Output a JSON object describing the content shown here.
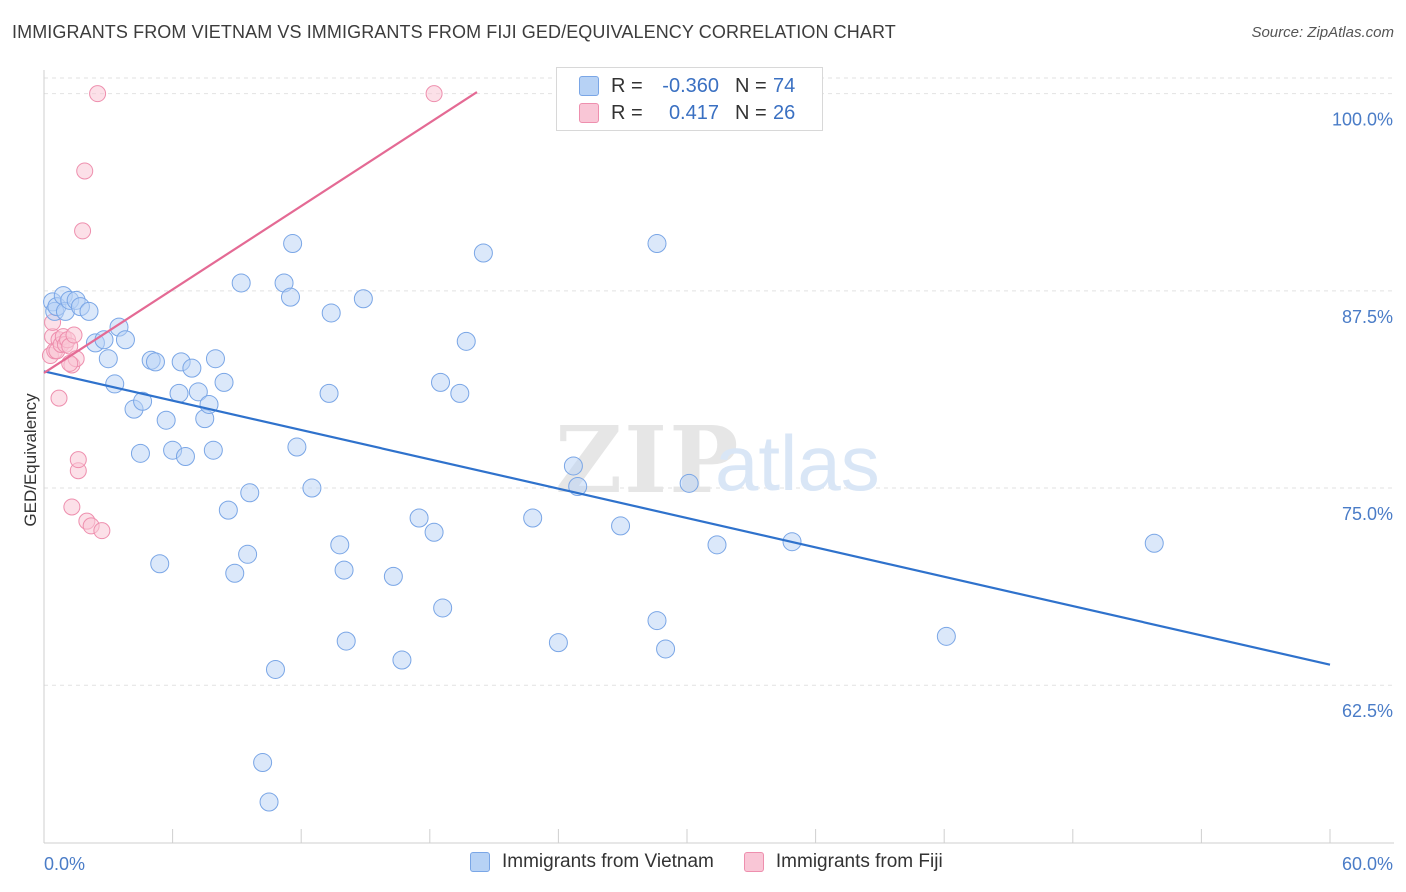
{
  "title": "IMMIGRANTS FROM VIETNAM VS IMMIGRANTS FROM FIJI GED/EQUIVALENCY CORRELATION CHART",
  "source": "Source: ZipAtlas.com",
  "watermark": {
    "zip": "ZIP",
    "atlas": "atlas"
  },
  "legend": {
    "rows": [
      {
        "r_label": "R =",
        "r_value": "-0.360",
        "n_label": "N =",
        "n_value": "74"
      },
      {
        "r_label": "R =",
        "r_value": "0.417",
        "n_label": "N =",
        "n_value": "26"
      }
    ]
  },
  "colors": {
    "vietnam_fill": "#b7d2f5",
    "vietnam_stroke": "#7aa6e6",
    "vietnam_line": "#2f72cc",
    "fiji_fill": "#f9c6d6",
    "fiji_stroke": "#ee8fae",
    "fiji_line": "#e46a94",
    "tick_label": "#4a7cc7",
    "grid": "#e2e2e2"
  },
  "chart_data": {
    "type": "scatter",
    "xlabel": "",
    "ylabel": "GED/Equivalency",
    "xlim": [
      0,
      60
    ],
    "ylim": [
      52.5,
      101.5
    ],
    "x_tick_labels": [
      "0.0%",
      "60.0%"
    ],
    "y_ticks": [
      62.5,
      75.0,
      87.5,
      100.0
    ],
    "y_tick_labels": [
      "62.5%",
      "75.0%",
      "87.5%",
      "100.0%"
    ],
    "grid": true,
    "legend_position": "bottom",
    "series": [
      {
        "name": "Immigrants from Vietnam",
        "color": "#b7d2f5",
        "trend": {
          "x": [
            0,
            60
          ],
          "y": [
            82.4,
            63.8
          ]
        },
        "points": [
          [
            0.4,
            86.8
          ],
          [
            0.5,
            86.2
          ],
          [
            0.6,
            86.5
          ],
          [
            0.9,
            87.2
          ],
          [
            1.0,
            86.2
          ],
          [
            1.2,
            86.9
          ],
          [
            1.5,
            86.9
          ],
          [
            1.7,
            86.5
          ],
          [
            2.1,
            86.2
          ],
          [
            2.4,
            84.2
          ],
          [
            2.8,
            84.4
          ],
          [
            3.0,
            83.2
          ],
          [
            3.3,
            81.6
          ],
          [
            3.5,
            85.2
          ],
          [
            3.8,
            84.4
          ],
          [
            4.2,
            80.0
          ],
          [
            4.6,
            80.5
          ],
          [
            4.5,
            77.2
          ],
          [
            5.0,
            83.1
          ],
          [
            5.2,
            83.0
          ],
          [
            5.7,
            79.3
          ],
          [
            5.4,
            70.2
          ],
          [
            6.0,
            77.4
          ],
          [
            6.3,
            81.0
          ],
          [
            6.4,
            83.0
          ],
          [
            6.6,
            77.0
          ],
          [
            6.9,
            82.6
          ],
          [
            7.2,
            81.1
          ],
          [
            7.5,
            79.4
          ],
          [
            7.7,
            80.3
          ],
          [
            7.9,
            77.4
          ],
          [
            8.0,
            83.2
          ],
          [
            8.4,
            81.7
          ],
          [
            8.6,
            73.6
          ],
          [
            8.9,
            69.6
          ],
          [
            9.2,
            88.0
          ],
          [
            9.5,
            70.8
          ],
          [
            9.6,
            74.7
          ],
          [
            10.2,
            57.6
          ],
          [
            10.5,
            55.1
          ],
          [
            10.8,
            63.5
          ],
          [
            11.2,
            88.0
          ],
          [
            11.5,
            87.1
          ],
          [
            11.6,
            90.5
          ],
          [
            11.8,
            77.6
          ],
          [
            12.5,
            75.0
          ],
          [
            13.3,
            81.0
          ],
          [
            13.4,
            86.1
          ],
          [
            13.8,
            71.4
          ],
          [
            14.0,
            69.8
          ],
          [
            14.1,
            65.3
          ],
          [
            14.9,
            87.0
          ],
          [
            16.3,
            69.4
          ],
          [
            16.7,
            64.1
          ],
          [
            17.5,
            73.1
          ],
          [
            18.2,
            72.2
          ],
          [
            18.6,
            67.4
          ],
          [
            18.5,
            81.7
          ],
          [
            19.4,
            81.0
          ],
          [
            19.7,
            84.3
          ],
          [
            20.5,
            89.9
          ],
          [
            22.8,
            73.1
          ],
          [
            24.0,
            65.2
          ],
          [
            24.7,
            76.4
          ],
          [
            24.9,
            75.1
          ],
          [
            26.9,
            72.6
          ],
          [
            28.6,
            66.6
          ],
          [
            28.6,
            90.5
          ],
          [
            29.0,
            64.8
          ],
          [
            30.1,
            75.3
          ],
          [
            31.4,
            71.4
          ],
          [
            34.9,
            71.6
          ],
          [
            42.1,
            65.6
          ],
          [
            51.8,
            71.5
          ]
        ]
      },
      {
        "name": "Immigrants from Fiji",
        "color": "#f9c6d6",
        "trend": {
          "x": [
            0,
            20.2
          ],
          "y": [
            82.3,
            100.1
          ]
        },
        "points": [
          [
            0.3,
            83.4
          ],
          [
            0.4,
            84.6
          ],
          [
            0.4,
            85.5
          ],
          [
            0.5,
            83.7
          ],
          [
            0.6,
            83.7
          ],
          [
            0.7,
            84.4
          ],
          [
            0.8,
            84.1
          ],
          [
            0.9,
            84.6
          ],
          [
            0.7,
            80.7
          ],
          [
            1.0,
            84.1
          ],
          [
            1.1,
            84.4
          ],
          [
            1.2,
            84.0
          ],
          [
            1.3,
            82.8
          ],
          [
            1.3,
            73.8
          ],
          [
            1.5,
            83.2
          ],
          [
            1.4,
            84.7
          ],
          [
            1.6,
            76.1
          ],
          [
            1.6,
            76.8
          ],
          [
            1.8,
            91.3
          ],
          [
            1.9,
            95.1
          ],
          [
            2.0,
            72.9
          ],
          [
            2.2,
            72.6
          ],
          [
            2.5,
            100.0
          ],
          [
            2.7,
            72.3
          ],
          [
            18.2,
            100.0
          ],
          [
            1.2,
            82.9
          ]
        ]
      }
    ]
  }
}
